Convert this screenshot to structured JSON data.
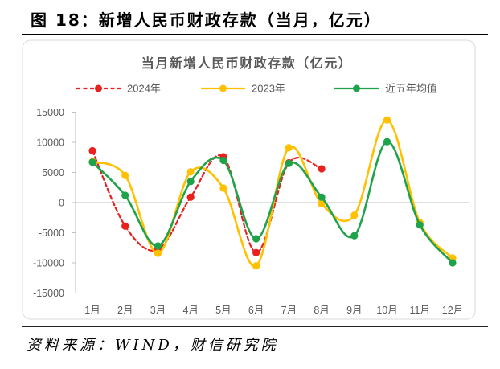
{
  "figure": {
    "title": "图 18：新增人民币财政存款（当月，亿元）",
    "source": "资料来源：WIND，财信研究院"
  },
  "chart_data": {
    "type": "line",
    "title": "当月新增人民币财政存款（亿元）",
    "xlabel": "",
    "ylabel": "",
    "categories": [
      "1月",
      "2月",
      "3月",
      "4月",
      "5月",
      "6月",
      "7月",
      "8月",
      "9月",
      "10月",
      "11月",
      "12月"
    ],
    "ylim": [
      -15000,
      15000
    ],
    "yticks": [
      15000,
      10000,
      5000,
      0,
      -5000,
      -10000,
      -15000
    ],
    "grid": false,
    "legend": "top",
    "series": [
      {
        "name": "2024年",
        "color": "#E8201E",
        "style": "dashed",
        "values": [
          8600,
          -3900,
          -7800,
          900,
          7600,
          -8300,
          6600,
          5600,
          null,
          null,
          null,
          null
        ]
      },
      {
        "name": "2023年",
        "color": "#FFC000",
        "style": "solid",
        "values": [
          6800,
          4500,
          -8400,
          5100,
          2400,
          -10500,
          9100,
          -200,
          -2100,
          13700,
          -3300,
          -9200
        ]
      },
      {
        "name": "近五年均值",
        "color": "#1FA34A",
        "style": "solid",
        "values": [
          6700,
          1200,
          -7200,
          3500,
          7000,
          -6000,
          6500,
          900,
          -5500,
          10100,
          -3700,
          -10000
        ]
      }
    ]
  }
}
